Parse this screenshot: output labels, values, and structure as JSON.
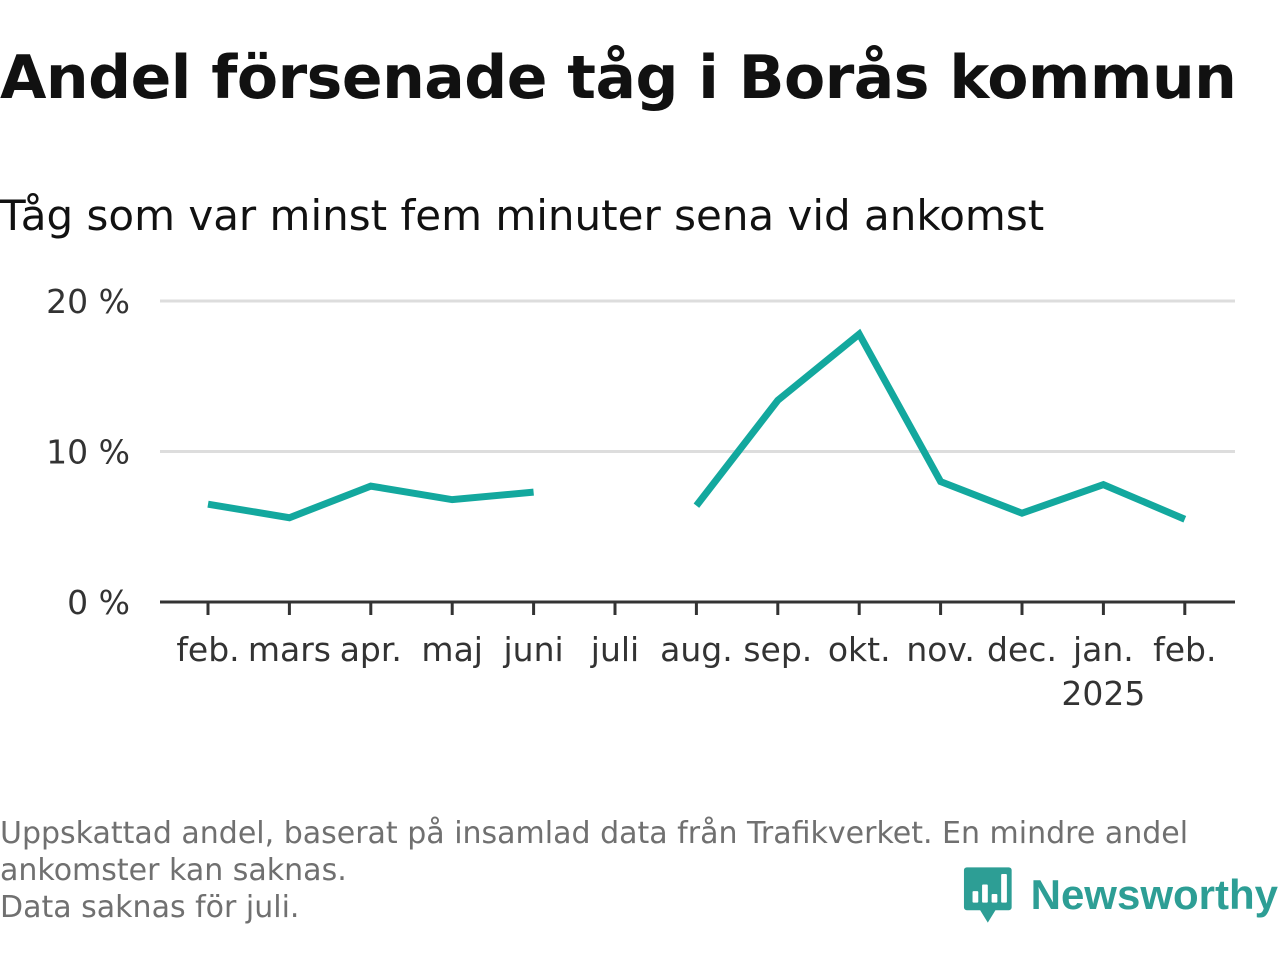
{
  "title": "Andel försenade tåg i Borås kommun",
  "subtitle": "Tåg som var minst fem minuter sena vid ankomst",
  "footnote": {
    "line1": "Uppskattad andel, baserat på insamlad data från Trafikverket. En mindre andel",
    "line2": "ankomster kan saknas.",
    "line3": "Data saknas för juli."
  },
  "brand": {
    "name": "Newsworthy",
    "icon": "bar-chart-speech-icon"
  },
  "colors": {
    "line": "#13a89e",
    "grid": "#dddddd",
    "axis": "#333333",
    "text": "#333333",
    "brand": "#2d9e95"
  },
  "chart_data": {
    "type": "line",
    "title": "Andel försenade tåg i Borås kommun",
    "subtitle": "Tåg som var minst fem minuter sena vid ankomst",
    "categories": [
      "feb.",
      "mars",
      "apr.",
      "maj",
      "juni",
      "juli",
      "aug.",
      "sep.",
      "okt.",
      "nov.",
      "dec.",
      "jan.",
      "feb."
    ],
    "category_sublabels": [
      "",
      "",
      "",
      "",
      "",
      "",
      "",
      "",
      "",
      "",
      "",
      "2025",
      ""
    ],
    "series": [
      {
        "values": [
          6.5,
          5.6,
          7.7,
          6.8,
          7.3,
          null,
          6.4,
          13.4,
          17.8,
          8.0,
          5.9,
          7.8,
          5.5
        ]
      }
    ],
    "y_ticks": [
      0,
      10,
      20
    ],
    "y_tick_labels": [
      "0 %",
      "10 %",
      "20 %"
    ],
    "ylim": [
      0,
      20
    ],
    "grid": true,
    "legend": false
  }
}
